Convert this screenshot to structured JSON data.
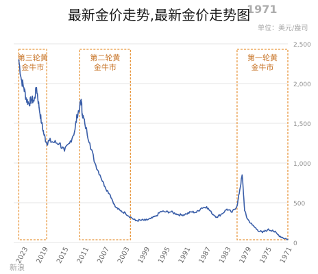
{
  "page": {
    "title": "最新金价走势,最新金价走势图",
    "bg_title": "1971",
    "unit_label": "单位：美元/盎司",
    "bottom_left": "新浪"
  },
  "chart_data": {
    "type": "line",
    "x_reversed": true,
    "xlim": [
      1971,
      2025
    ],
    "ylim": [
      0,
      2500
    ],
    "yticks": [
      0,
      500,
      1000,
      1500,
      2000,
      2500
    ],
    "ytick_labels": [
      "0",
      "500",
      "1,000",
      "1,500",
      "2,000",
      "2,500"
    ],
    "xticks": [
      1971,
      1975,
      1979,
      1983,
      1987,
      1991,
      1995,
      1999,
      2003,
      2007,
      2011,
      2015,
      2019,
      2023
    ],
    "xtick_labels": [
      "1971",
      "1975",
      "1979",
      "1983",
      "1987",
      "1991",
      "1995",
      "1999",
      "2003",
      "2007",
      "2011",
      "2015",
      "2019",
      "2023"
    ],
    "grid": true,
    "line_color": "#3a5ea8",
    "box_color": "#e8963c",
    "series": [
      {
        "x": [
          2024,
          2023.5,
          2023,
          2022.5,
          2022,
          2021.5,
          2021,
          2020.5,
          2020,
          2019.5,
          2019,
          2018.5,
          2018,
          2017,
          2016,
          2015,
          2014,
          2013,
          2012.5,
          2012,
          2011.7,
          2011.5,
          2011,
          2010,
          2009,
          2008,
          2007,
          2006,
          2005,
          2004,
          2003,
          2002,
          2001,
          2000,
          1999,
          1998,
          1997,
          1996,
          1995,
          1994,
          1993,
          1992,
          1991,
          1990,
          1989,
          1988,
          1987,
          1986,
          1985,
          1984,
          1983,
          1982,
          1981,
          1980.5,
          1980,
          1979.5,
          1979,
          1978,
          1977,
          1976,
          1975,
          1974,
          1973,
          1972,
          1971
        ],
        "y": [
          2300,
          2050,
          1950,
          1800,
          1750,
          1800,
          1780,
          1950,
          1700,
          1500,
          1350,
          1250,
          1280,
          1260,
          1250,
          1150,
          1250,
          1400,
          1600,
          1700,
          1800,
          1620,
          1500,
          1250,
          1000,
          850,
          700,
          600,
          450,
          400,
          370,
          320,
          275,
          280,
          280,
          300,
          330,
          390,
          385,
          385,
          360,
          345,
          360,
          385,
          380,
          435,
          450,
          370,
          320,
          360,
          420,
          380,
          460,
          650,
          850,
          400,
          300,
          220,
          160,
          125,
          160,
          155,
          100,
          60,
          40
        ]
      }
    ],
    "boxes": [
      {
        "label": "第三轮黄金牛市",
        "x_start": 2024,
        "x_end": 2018.5
      },
      {
        "label": "第二轮黄金牛市",
        "x_start": 2012,
        "x_end": 2002
      },
      {
        "label": "第一轮黄金牛市",
        "x_start": 1981,
        "x_end": 1971
      }
    ]
  }
}
